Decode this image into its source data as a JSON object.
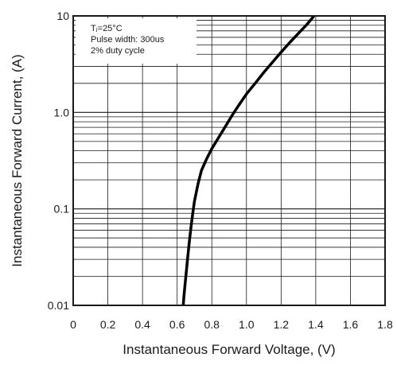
{
  "chart_data": {
    "type": "line",
    "xlabel": "Instantaneous Forward Voltage, (V)",
    "ylabel": "Instantaneous Forward Current, (A)",
    "x_scale": "linear",
    "y_scale": "log",
    "xlim": [
      0,
      1.8
    ],
    "ylim": [
      0.01,
      10
    ],
    "grid": true,
    "x_ticks": [
      "0",
      "0.2",
      "0.4",
      "0.6",
      "0.8",
      "1.0",
      "1.2",
      "1.4",
      "1.6",
      "1.8"
    ],
    "y_ticks": [
      "0.01",
      "0.1",
      "1.0",
      "10"
    ],
    "annotation": {
      "position": "top-left",
      "lines": [
        "Tⱼ=25°C",
        "Pulse width: 300us",
        "2% duty cycle"
      ]
    },
    "series": [
      {
        "x": [
          0.635,
          0.64,
          0.65,
          0.66,
          0.67,
          0.68,
          0.69,
          0.7,
          0.72,
          0.74,
          0.77,
          0.8,
          0.84,
          0.88,
          0.92,
          0.96,
          1.0,
          1.05,
          1.1,
          1.15,
          1.2,
          1.25,
          1.3,
          1.35,
          1.39
        ],
        "y": [
          0.01,
          0.013,
          0.02,
          0.03,
          0.045,
          0.065,
          0.09,
          0.12,
          0.18,
          0.25,
          0.33,
          0.42,
          0.55,
          0.72,
          0.95,
          1.22,
          1.55,
          2.0,
          2.6,
          3.3,
          4.2,
          5.3,
          6.6,
          8.2,
          10
        ]
      }
    ]
  }
}
